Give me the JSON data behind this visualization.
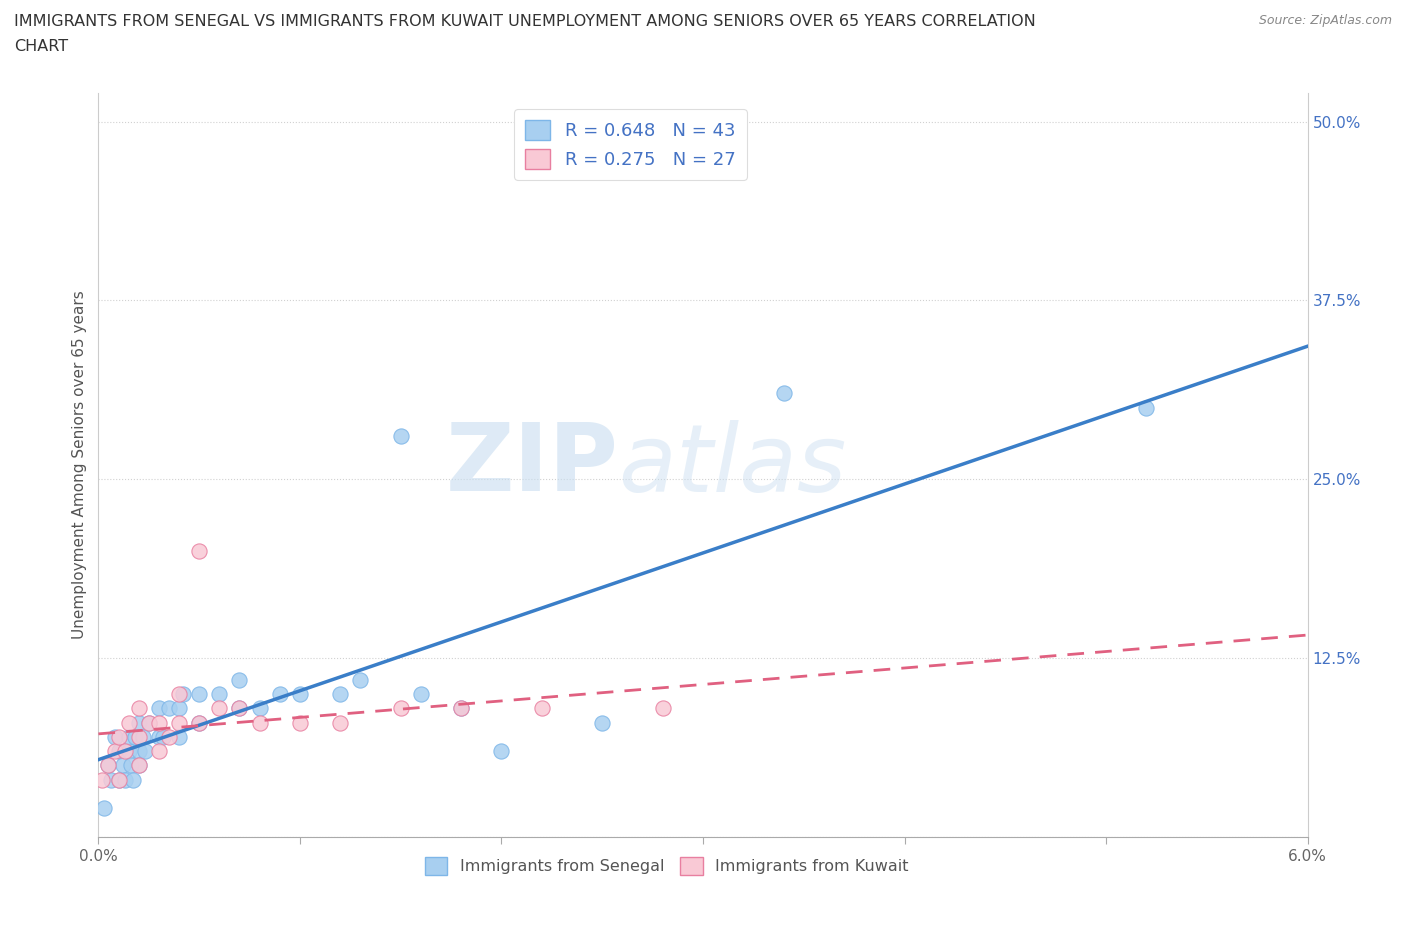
{
  "title_line1": "IMMIGRANTS FROM SENEGAL VS IMMIGRANTS FROM KUWAIT UNEMPLOYMENT AMONG SENIORS OVER 65 YEARS CORRELATION",
  "title_line2": "CHART",
  "source": "Source: ZipAtlas.com",
  "xlabel_bottom": [
    "Immigrants from Senegal",
    "Immigrants from Kuwait"
  ],
  "ylabel": "Unemployment Among Seniors over 65 years",
  "xlim": [
    0.0,
    0.06
  ],
  "ylim": [
    0.0,
    0.52
  ],
  "xticks": [
    0.0,
    0.01,
    0.02,
    0.03,
    0.04,
    0.05,
    0.06
  ],
  "xtick_labels_corners": {
    "0.0": "0.0%",
    "0.06": "6.0%"
  },
  "yticks": [
    0.0,
    0.125,
    0.25,
    0.375,
    0.5
  ],
  "ytick_labels": [
    "",
    "12.5%",
    "25.0%",
    "37.5%",
    "50.0%"
  ],
  "senegal_color": "#A8CFF0",
  "senegal_edge_color": "#7EB6E8",
  "kuwait_color": "#F9C9D5",
  "kuwait_edge_color": "#E87FA0",
  "senegal_line_color": "#3A7EC8",
  "kuwait_line_color": "#E06080",
  "R_senegal": 0.648,
  "N_senegal": 43,
  "R_kuwait": 0.275,
  "N_kuwait": 27,
  "legend_text_color": "#4472C4",
  "ytick_color": "#4472C4",
  "watermark_zip": "ZIP",
  "watermark_atlas": "atlas",
  "background_color": "#FFFFFF",
  "grid_color": "#CCCCCC",
  "senegal_x": [
    0.0003,
    0.0005,
    0.0006,
    0.0008,
    0.001,
    0.001,
    0.0012,
    0.0013,
    0.0015,
    0.0015,
    0.0016,
    0.0017,
    0.0018,
    0.002,
    0.002,
    0.002,
    0.0022,
    0.0023,
    0.0025,
    0.003,
    0.003,
    0.0032,
    0.0035,
    0.004,
    0.004,
    0.0042,
    0.005,
    0.005,
    0.006,
    0.007,
    0.007,
    0.008,
    0.009,
    0.01,
    0.012,
    0.013,
    0.015,
    0.016,
    0.018,
    0.02,
    0.025,
    0.034,
    0.052
  ],
  "senegal_y": [
    0.02,
    0.05,
    0.04,
    0.07,
    0.04,
    0.06,
    0.05,
    0.04,
    0.06,
    0.07,
    0.05,
    0.04,
    0.07,
    0.06,
    0.08,
    0.05,
    0.07,
    0.06,
    0.08,
    0.07,
    0.09,
    0.07,
    0.09,
    0.09,
    0.07,
    0.1,
    0.08,
    0.1,
    0.1,
    0.09,
    0.11,
    0.09,
    0.1,
    0.1,
    0.1,
    0.11,
    0.28,
    0.1,
    0.09,
    0.06,
    0.08,
    0.31,
    0.3
  ],
  "kuwait_x": [
    0.0002,
    0.0005,
    0.0008,
    0.001,
    0.001,
    0.0013,
    0.0015,
    0.002,
    0.002,
    0.002,
    0.0025,
    0.003,
    0.003,
    0.0035,
    0.004,
    0.004,
    0.005,
    0.005,
    0.006,
    0.007,
    0.008,
    0.01,
    0.012,
    0.015,
    0.018,
    0.022,
    0.028
  ],
  "kuwait_y": [
    0.04,
    0.05,
    0.06,
    0.04,
    0.07,
    0.06,
    0.08,
    0.05,
    0.07,
    0.09,
    0.08,
    0.06,
    0.08,
    0.07,
    0.08,
    0.1,
    0.08,
    0.2,
    0.09,
    0.09,
    0.08,
    0.08,
    0.08,
    0.09,
    0.09,
    0.09,
    0.09
  ]
}
